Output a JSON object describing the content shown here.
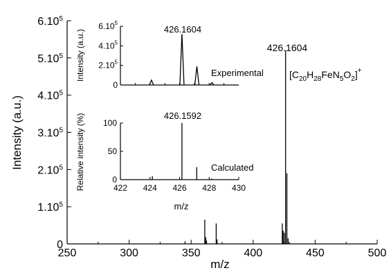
{
  "chart_data": [
    {
      "type": "line",
      "xlabel": "m/z",
      "ylabel": "Intensity (a.u.)",
      "xlim": [
        250,
        500
      ],
      "ylim": [
        0,
        600000
      ],
      "x_ticks": [
        250,
        300,
        350,
        400,
        450,
        500
      ],
      "x_tick_labels": [
        "250",
        "300",
        "350",
        "400",
        "450",
        "500"
      ],
      "y_ticks": [
        {
          "base": "0",
          "exp": ""
        },
        {
          "base": "1.10",
          "exp": "5"
        },
        {
          "base": "2.10",
          "exp": "5"
        },
        {
          "base": "3.10",
          "exp": "5"
        },
        {
          "base": "4.10",
          "exp": "5"
        },
        {
          "base": "5.10",
          "exp": "5"
        },
        {
          "base": "6.10",
          "exp": "5"
        }
      ],
      "y_tick_values": [
        0,
        100000,
        200000,
        300000,
        400000,
        500000,
        600000
      ],
      "peak_label": "426.1604",
      "formula": {
        "parts": [
          "[C",
          "20",
          "H",
          "28",
          "FeN",
          "5",
          "O",
          "2",
          "]",
          "+"
        ]
      },
      "series": [
        {
          "x": [
            345.1,
            361.0,
            361.8,
            362.4,
            370.2,
            370.9,
            423.5,
            424.2,
            425.2,
            426.16,
            427.2,
            428.2,
            429.2
          ],
          "values": [
            7000,
            65000,
            18000,
            9000,
            55000,
            12000,
            55000,
            35000,
            30000,
            520000,
            190000,
            15000,
            5000
          ]
        }
      ]
    },
    {
      "type": "line",
      "ylabel": "Intensity (a.u.)",
      "xlim": [
        422,
        430
      ],
      "ylim": [
        0,
        600000
      ],
      "y_ticks": [
        {
          "base": "0",
          "exp": ""
        },
        {
          "base": "2.10",
          "exp": "5"
        },
        {
          "base": "4.10",
          "exp": "5"
        },
        {
          "base": "6.10",
          "exp": "5"
        }
      ],
      "y_tick_values": [
        0,
        200000,
        400000,
        600000
      ],
      "peak_label": "426.1604",
      "label": "Experimental",
      "series": [
        {
          "x": [
            424.1,
            426.16,
            427.17,
            428.18
          ],
          "values": [
            50000,
            520000,
            190000,
            25000
          ]
        }
      ]
    },
    {
      "type": "bar",
      "ylabel": "Relative intensity (%)",
      "xlabel": "m/z",
      "xlim": [
        422,
        430
      ],
      "ylim": [
        0,
        100
      ],
      "x_ticks": [
        422,
        424,
        426,
        428,
        430
      ],
      "x_tick_labels": [
        "422",
        "424",
        "426",
        "428",
        "430"
      ],
      "y_ticks": [
        0,
        50,
        100
      ],
      "y_tick_labels": [
        "0",
        "50",
        "100"
      ],
      "peak_label": "426.1592",
      "label": "Calculated",
      "series": [
        {
          "x": [
            424.16,
            426.16,
            427.16,
            428.16
          ],
          "values": [
            6,
            100,
            22,
            2
          ]
        }
      ]
    }
  ]
}
